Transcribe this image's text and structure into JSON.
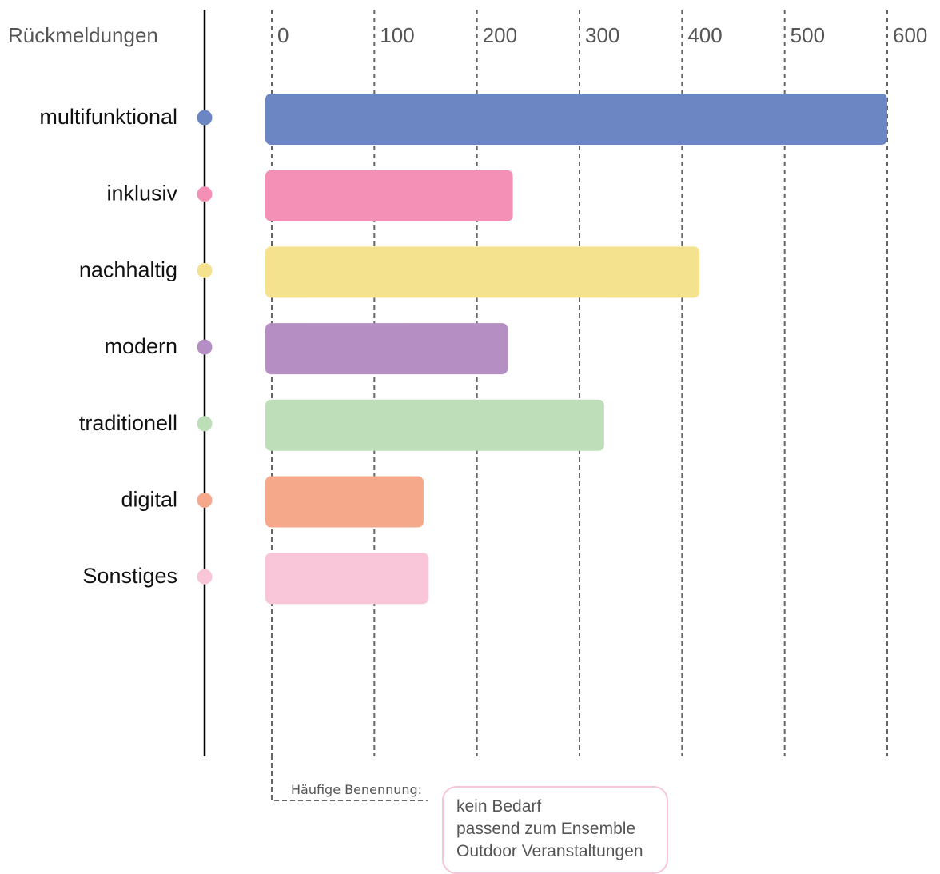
{
  "chart_data": {
    "type": "bar",
    "orientation": "horizontal",
    "axis_title": "Rückmeldungen",
    "xlim": [
      0,
      600
    ],
    "ticks": [
      "0",
      "100",
      "200",
      "300",
      "400",
      "500",
      "600"
    ],
    "grid": "vertical dashed",
    "categories": [
      "multifunktional",
      "inklusiv",
      "nachhaltig",
      "modern",
      "traditionell",
      "digital",
      "Sonstiges"
    ],
    "values": [
      600,
      235,
      417,
      230,
      324,
      148,
      153
    ],
    "colors": [
      "#6b86c2",
      "#f48fb6",
      "#f4e28f",
      "#b58fc3",
      "#bddeb9",
      "#f6a98a",
      "#f8c6d8"
    ]
  },
  "note": {
    "label": "Häufige Benennung:",
    "items": [
      "kein Bedarf",
      "passend zum Ensemble",
      "Outdoor Veranstaltungen"
    ]
  }
}
